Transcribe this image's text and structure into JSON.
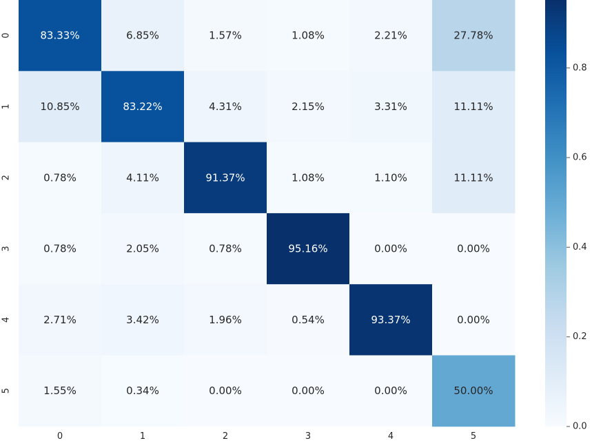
{
  "chart_data": {
    "type": "heatmap",
    "title": "",
    "xlabel": "",
    "ylabel": "",
    "x_categories": [
      "0",
      "1",
      "2",
      "3",
      "4",
      "5"
    ],
    "y_categories": [
      "0",
      "1",
      "2",
      "3",
      "4",
      "5"
    ],
    "values": [
      [
        0.8333,
        0.0685,
        0.0157,
        0.0108,
        0.0221,
        0.2778
      ],
      [
        0.1085,
        0.8322,
        0.0431,
        0.0215,
        0.0331,
        0.1111
      ],
      [
        0.0078,
        0.0411,
        0.9137,
        0.0108,
        0.011,
        0.1111
      ],
      [
        0.0078,
        0.0205,
        0.0078,
        0.9516,
        0.0,
        0.0
      ],
      [
        0.0271,
        0.0342,
        0.0196,
        0.0054,
        0.9337,
        0.0
      ],
      [
        0.0155,
        0.0034,
        0.0,
        0.0,
        0.0,
        0.5
      ]
    ],
    "cell_labels": [
      [
        "83.33%",
        "6.85%",
        "1.57%",
        "1.08%",
        "2.21%",
        "27.78%"
      ],
      [
        "10.85%",
        "83.22%",
        "4.31%",
        "2.15%",
        "3.31%",
        "11.11%"
      ],
      [
        "0.78%",
        "4.11%",
        "91.37%",
        "1.08%",
        "1.10%",
        "11.11%"
      ],
      [
        "0.78%",
        "2.05%",
        "0.78%",
        "95.16%",
        "0.00%",
        "0.00%"
      ],
      [
        "2.71%",
        "3.42%",
        "1.96%",
        "0.54%",
        "93.37%",
        "0.00%"
      ],
      [
        "1.55%",
        "0.34%",
        "0.00%",
        "0.00%",
        "0.00%",
        "50.00%"
      ]
    ],
    "colormap": "Blues",
    "color_range": [
      0,
      0.9516
    ],
    "colorbar_ticks": [
      0.0,
      0.2,
      0.4,
      0.6,
      0.8
    ],
    "colorbar_tick_labels": [
      "0.0",
      "0.2",
      "0.4",
      "0.6",
      "0.8"
    ],
    "grid": false,
    "colors": {
      "low": "#f7fbff",
      "high": "#08306b",
      "text_dark": "#262626",
      "text_light": "#ffffff"
    }
  }
}
